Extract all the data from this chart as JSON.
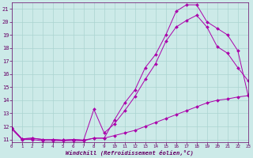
{
  "xlabel": "Windchill (Refroidissement éolien,°C)",
  "bg_color": "#cceae8",
  "grid_color": "#aad4d0",
  "line_color": "#aa00aa",
  "xlim": [
    0,
    23
  ],
  "ylim": [
    10.8,
    21.5
  ],
  "yticks": [
    11,
    12,
    13,
    14,
    15,
    16,
    17,
    18,
    19,
    20,
    21
  ],
  "xticks": [
    0,
    1,
    2,
    3,
    4,
    5,
    6,
    7,
    8,
    9,
    10,
    11,
    12,
    13,
    14,
    15,
    16,
    17,
    18,
    19,
    20,
    21,
    22,
    23
  ],
  "line1_x": [
    0,
    1,
    2,
    3,
    4,
    5,
    6,
    7,
    8,
    9,
    10,
    11,
    12,
    13,
    14,
    15,
    16,
    17,
    18,
    19,
    20,
    21,
    22,
    23
  ],
  "line1_y": [
    11.8,
    11.0,
    11.0,
    10.9,
    10.9,
    10.9,
    10.9,
    10.9,
    11.1,
    11.1,
    11.3,
    11.5,
    11.7,
    12.0,
    12.3,
    12.6,
    12.9,
    13.2,
    13.5,
    13.8,
    14.0,
    14.1,
    14.25,
    14.35
  ],
  "line2_x": [
    0,
    1,
    2,
    3,
    4,
    5,
    6,
    7,
    8,
    9,
    10,
    11,
    12,
    13,
    14,
    15,
    16,
    17,
    18,
    19,
    20,
    21,
    22,
    23
  ],
  "line2_y": [
    11.9,
    11.05,
    11.1,
    11.0,
    11.0,
    10.95,
    11.0,
    10.95,
    11.1,
    11.1,
    12.5,
    13.8,
    14.8,
    16.5,
    17.5,
    19.0,
    20.8,
    21.3,
    21.3,
    20.0,
    19.5,
    19.0,
    17.8,
    14.4
  ],
  "line3_x": [
    0,
    1,
    2,
    3,
    4,
    5,
    6,
    7,
    8,
    9,
    10,
    11,
    12,
    13,
    14,
    15,
    16,
    17,
    18,
    19,
    20,
    21,
    22,
    23
  ],
  "line3_y": [
    11.9,
    11.05,
    11.1,
    11.0,
    11.0,
    10.95,
    11.0,
    10.95,
    13.3,
    11.5,
    12.2,
    13.2,
    14.3,
    15.6,
    16.8,
    18.5,
    19.6,
    20.1,
    20.5,
    19.6,
    18.1,
    17.6,
    16.5,
    15.5
  ]
}
